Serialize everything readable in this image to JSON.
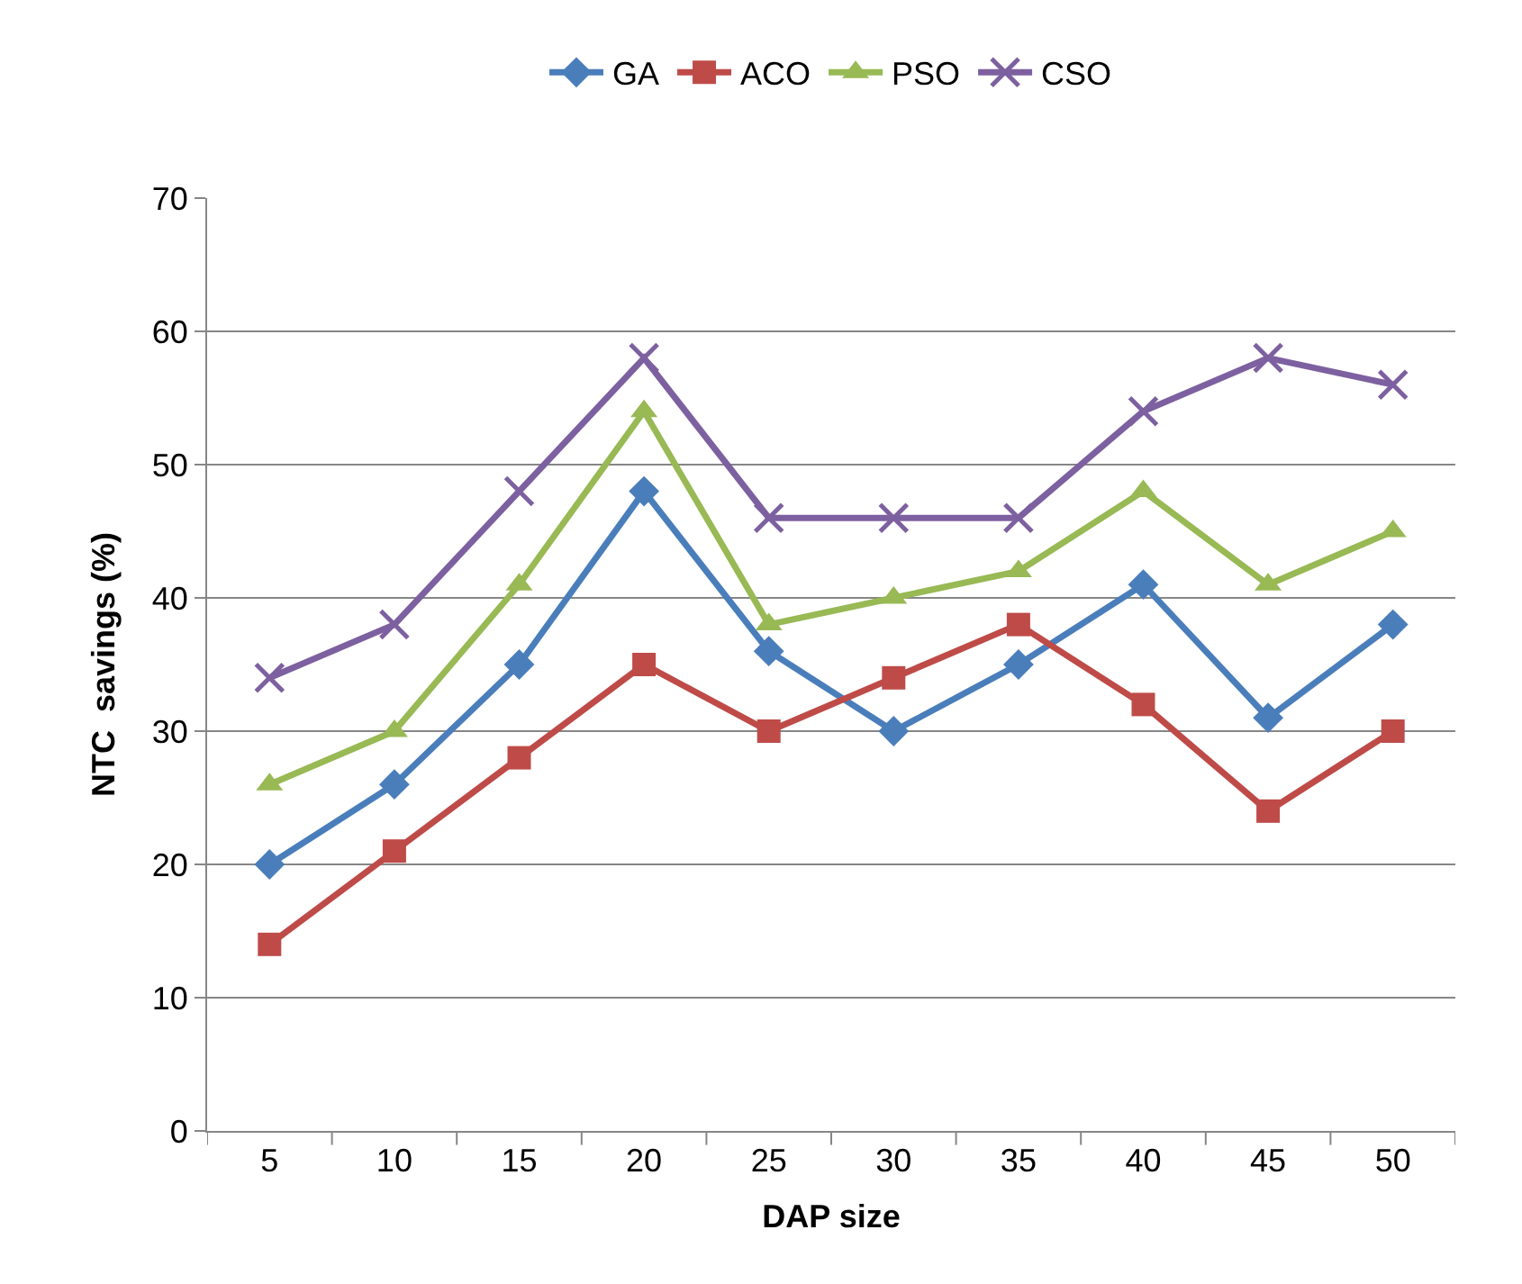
{
  "chart_data": {
    "type": "line",
    "xlabel": "DAP size",
    "ylabel": "NTC  savings (%)",
    "categories": [
      "5",
      "10",
      "15",
      "20",
      "25",
      "30",
      "35",
      "40",
      "45",
      "50"
    ],
    "series": [
      {
        "name": "GA",
        "color": "#4a7ebb",
        "marker": "diamond",
        "values": [
          20,
          26,
          35,
          48,
          36,
          30,
          35,
          41,
          31,
          38
        ]
      },
      {
        "name": "ACO",
        "color": "#be4b48",
        "marker": "square",
        "values": [
          14,
          21,
          28,
          35,
          30,
          34,
          38,
          32,
          24,
          30
        ]
      },
      {
        "name": "PSO",
        "color": "#98b954",
        "marker": "triangle",
        "values": [
          26,
          30,
          41,
          54,
          38,
          40,
          42,
          48,
          41,
          45
        ]
      },
      {
        "name": "CSO",
        "color": "#7d60a0",
        "marker": "cross",
        "values": [
          34,
          38,
          48,
          58,
          46,
          46,
          46,
          54,
          58,
          56
        ]
      }
    ],
    "ylim": [
      0,
      70
    ],
    "yticks": [
      0,
      10,
      20,
      30,
      40,
      50,
      60,
      70
    ],
    "grid": "y",
    "legend": "top",
    "line_style": "solid"
  }
}
